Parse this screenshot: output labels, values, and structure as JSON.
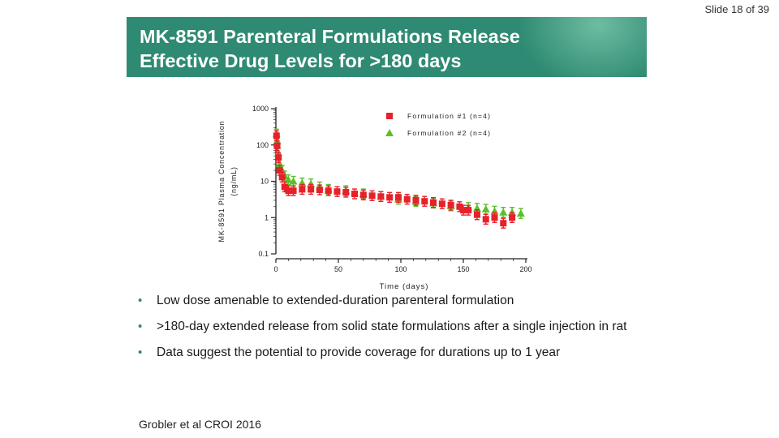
{
  "slide": {
    "counter": "Slide 18 of 39"
  },
  "banner": {
    "title_line1": "MK-8591 Parenteral Formulations Release",
    "title_line2": "Effective Drug Levels for >180 days",
    "color": "#2e8a72"
  },
  "chart_data": {
    "type": "scatter",
    "ylabel_line1": "MK-8591 Plasma Concentration",
    "ylabel_line2": "(ng/mL)",
    "xlabel": "Time (days)",
    "xlim": [
      0,
      200
    ],
    "ylim": [
      0.1,
      1000
    ],
    "yscale": "log",
    "x_ticks": [
      "0",
      "50",
      "100",
      "150",
      "200"
    ],
    "y_ticks": [
      "0.1",
      "1",
      "10",
      "100",
      "1000"
    ],
    "legend_position": "top-right",
    "series": [
      {
        "name": "Formulation #1 (n=4)",
        "marker": "square",
        "color": "#e8202a",
        "x": [
          0.5,
          1,
          2,
          3,
          5,
          7,
          10,
          14,
          21,
          28,
          35,
          42,
          49,
          56,
          63,
          70,
          77,
          84,
          91,
          98,
          105,
          112,
          119,
          126,
          133,
          140,
          147,
          150,
          154,
          161,
          168,
          175,
          182,
          189
        ],
        "y": [
          180,
          95,
          45,
          20,
          13,
          7,
          5.5,
          5.5,
          6,
          6,
          5.8,
          5.5,
          5.2,
          5,
          4.5,
          4.2,
          4,
          3.8,
          3.6,
          3.6,
          3.2,
          3,
          2.8,
          2.6,
          2.4,
          2.2,
          2,
          1.6,
          1.6,
          1.2,
          0.9,
          1,
          0.7,
          1
        ]
      },
      {
        "name": "Formulation #2 (n=4)",
        "marker": "triangle",
        "color": "#5cbf2a",
        "x": [
          0.5,
          1,
          2,
          3,
          5,
          7,
          10,
          14,
          21,
          28,
          35,
          42,
          56,
          70,
          84,
          98,
          112,
          126,
          140,
          154,
          161,
          168,
          175,
          182,
          189,
          196
        ],
        "y": [
          200,
          130,
          60,
          30,
          20,
          14,
          11,
          10,
          9,
          8.5,
          7,
          6,
          5.5,
          4.5,
          3.8,
          3.2,
          2.8,
          2.5,
          2.1,
          1.9,
          1.8,
          1.7,
          1.5,
          1.4,
          1.4,
          1.3
        ]
      }
    ]
  },
  "bullets": [
    "Low dose amenable to extended-duration parenteral formulation",
    ">180-day extended release from solid state formulations after a single injection in rat",
    "Data suggest the potential to provide coverage for durations up to 1 year"
  ],
  "bullet_glyph": "•",
  "citation": "Grobler et al CROI 2016"
}
